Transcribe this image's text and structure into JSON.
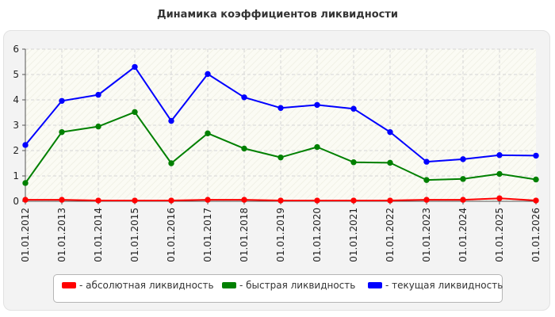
{
  "chart_data": {
    "type": "line",
    "title": "Динамика коэффициентов ликвидности",
    "categories": [
      "01.01.2012",
      "01.01.2013",
      "01.01.2014",
      "01.01.2015",
      "01.01.2016",
      "01.01.2017",
      "01.01.2018",
      "01.01.2019",
      "01.01.2020",
      "01.01.2021",
      "01.01.2022",
      "01.01.2023",
      "01.01.2024",
      "01.01.2025",
      "01.01.2026"
    ],
    "ylim": [
      0,
      6
    ],
    "yticks": [
      "0",
      "1",
      "2",
      "3",
      "4",
      "5",
      "6"
    ],
    "grid": true,
    "legend_position": "bottom",
    "series": [
      {
        "name": "- абсолютная ликвидность",
        "color": "#ff0000",
        "values": [
          0.06,
          0.06,
          0.03,
          0.03,
          0.03,
          0.06,
          0.06,
          0.03,
          0.03,
          0.03,
          0.03,
          0.06,
          0.06,
          0.12,
          0.03
        ]
      },
      {
        "name": "- быстрая ликвидность",
        "color": "#008000",
        "values": [
          0.72,
          2.73,
          2.95,
          3.52,
          1.5,
          2.68,
          2.08,
          1.73,
          2.14,
          1.54,
          1.52,
          0.84,
          0.88,
          1.08,
          0.86
        ]
      },
      {
        "name": "- текущая ликвидность",
        "color": "#0000ff",
        "values": [
          2.22,
          3.96,
          4.2,
          5.3,
          3.17,
          5.02,
          4.1,
          3.68,
          3.8,
          3.65,
          2.73,
          1.56,
          1.66,
          1.82,
          1.8
        ]
      }
    ]
  }
}
